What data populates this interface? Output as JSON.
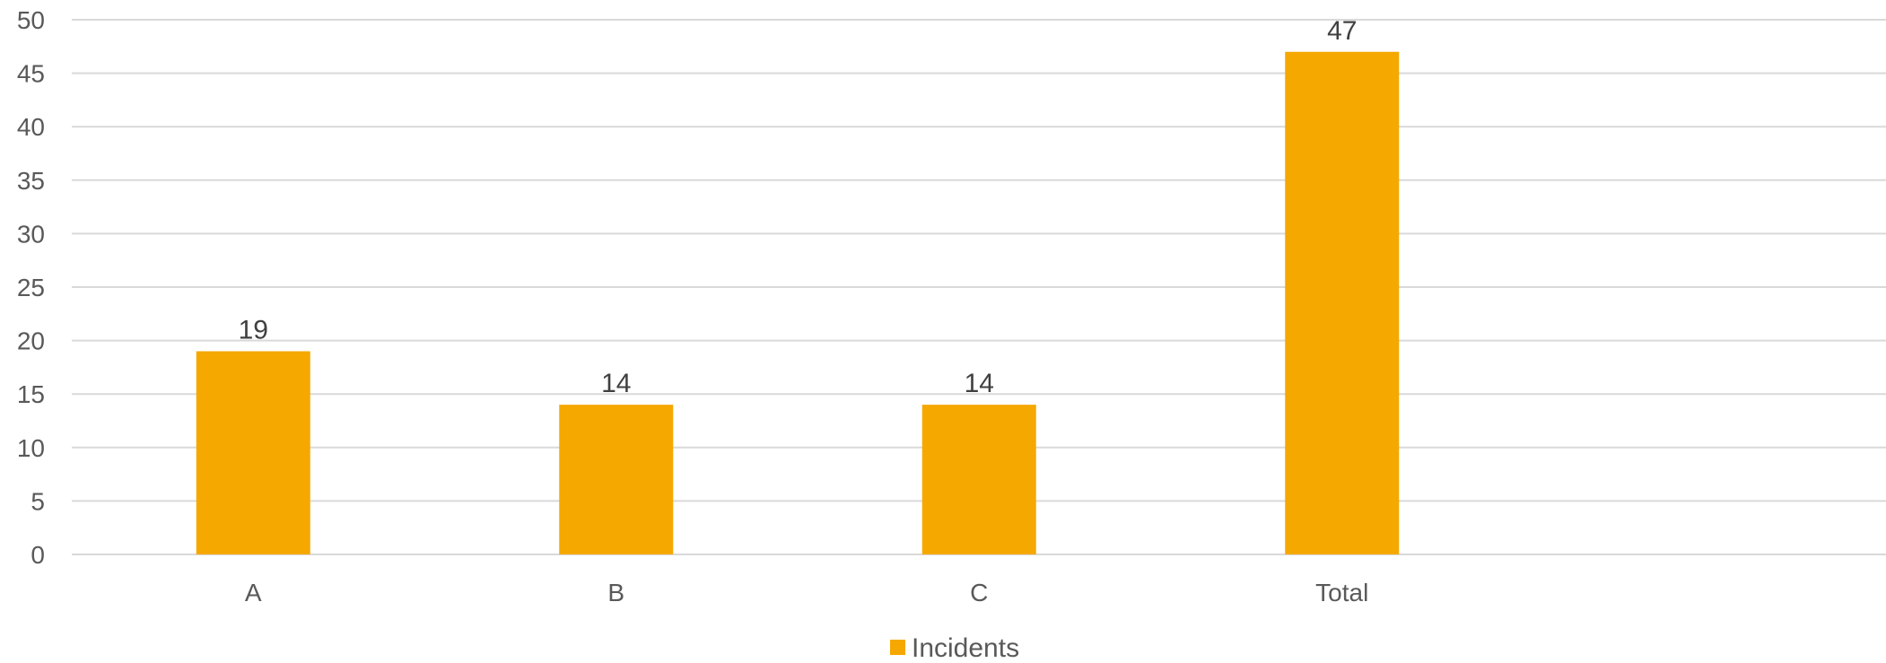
{
  "chart_data": {
    "type": "bar",
    "categories": [
      "A",
      "B",
      "C",
      "Total"
    ],
    "series": [
      {
        "name": "Incidents",
        "values": [
          19,
          14,
          14,
          47
        ],
        "color": "#F5A800"
      }
    ],
    "data_labels": [
      "19",
      "14",
      "14",
      "47"
    ],
    "ylim": [
      0,
      50
    ],
    "yticks": [
      "0",
      "5",
      "10",
      "15",
      "20",
      "25",
      "30",
      "35",
      "40",
      "45",
      "50"
    ],
    "grid": true,
    "gridline_color": "#D9D9D9",
    "legend": {
      "position": "bottom",
      "entries": [
        "Incidents"
      ]
    },
    "title": "",
    "xlabel": "",
    "ylabel": ""
  }
}
